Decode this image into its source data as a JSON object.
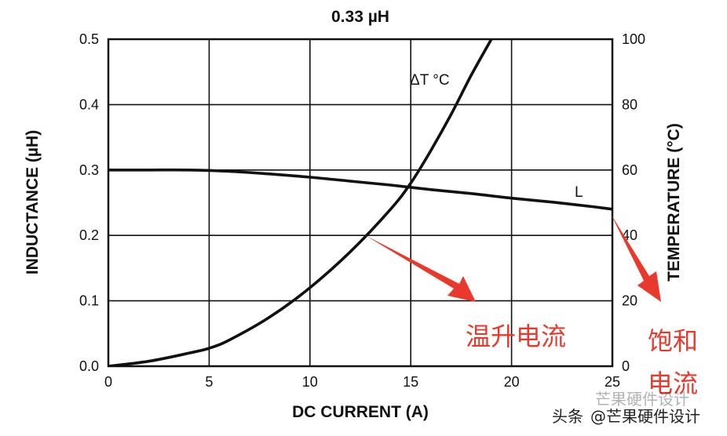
{
  "chart_data": {
    "type": "line",
    "title": "0.33 µH",
    "xlabel": "DC CURRENT (A)",
    "ylabel": "INDUCTANCE (µH)",
    "y2label": "TEMPERATURE (°C)",
    "xlim": [
      0,
      25
    ],
    "ylim": [
      0,
      0.5
    ],
    "y2lim": [
      0,
      100
    ],
    "grid": true,
    "x_ticks": [
      0,
      5,
      10,
      15,
      20,
      25
    ],
    "y_ticks": [
      0.0,
      0.1,
      0.2,
      0.3,
      0.4,
      0.5
    ],
    "y_tick_labels": [
      "0.0",
      "0.1",
      "0.2",
      "0.3",
      "0.4",
      "0.5"
    ],
    "y2_ticks": [
      0,
      20,
      40,
      60,
      80,
      100
    ],
    "series": [
      {
        "name": "L",
        "axis": "left",
        "x": [
          0,
          2,
          4,
          6,
          8,
          10,
          12,
          14,
          16,
          18,
          20,
          22,
          24,
          25
        ],
        "y": [
          0.3,
          0.3,
          0.3,
          0.298,
          0.294,
          0.289,
          0.283,
          0.277,
          0.27,
          0.264,
          0.257,
          0.251,
          0.244,
          0.24
        ]
      },
      {
        "name": "ΔT °C",
        "axis": "right",
        "x": [
          0,
          2,
          4,
          5,
          6,
          8,
          10,
          12,
          14,
          15,
          16,
          17,
          18,
          19
        ],
        "y": [
          0,
          1.5,
          4,
          5.5,
          8,
          15,
          24,
          35,
          48,
          56,
          66,
          77,
          89,
          100
        ]
      }
    ],
    "annotations": [
      {
        "text": "温升电流",
        "color": "#e8392c"
      },
      {
        "text": "饱和",
        "color": "#e8392c"
      },
      {
        "text": "电流",
        "color": "#e8392c"
      }
    ]
  },
  "watermark": {
    "prefix": "头条",
    "handle": "@芒果硬件设计",
    "faded": "芒果硬件设计"
  }
}
